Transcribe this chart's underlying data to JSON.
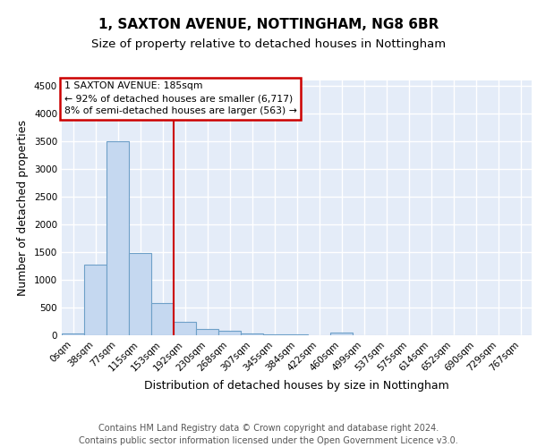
{
  "title": "1, SAXTON AVENUE, NOTTINGHAM, NG8 6BR",
  "subtitle": "Size of property relative to detached houses in Nottingham",
  "xlabel": "Distribution of detached houses by size in Nottingham",
  "ylabel": "Number of detached properties",
  "categories": [
    "0sqm",
    "38sqm",
    "77sqm",
    "115sqm",
    "153sqm",
    "192sqm",
    "230sqm",
    "268sqm",
    "307sqm",
    "345sqm",
    "384sqm",
    "422sqm",
    "460sqm",
    "499sqm",
    "537sqm",
    "575sqm",
    "614sqm",
    "652sqm",
    "690sqm",
    "729sqm",
    "767sqm"
  ],
  "values": [
    30,
    1280,
    3500,
    1480,
    580,
    240,
    120,
    80,
    40,
    20,
    10,
    5,
    50,
    0,
    0,
    0,
    0,
    0,
    0,
    0,
    0
  ],
  "bar_color": "#c5d8f0",
  "bar_edge_color": "#6ea0c8",
  "background_color": "#e4ecf8",
  "grid_color": "#ffffff",
  "property_line_x": 4.5,
  "annotation_line1": "1 SAXTON AVENUE: 185sqm",
  "annotation_line2": "← 92% of detached houses are smaller (6,717)",
  "annotation_line3": "8% of semi-detached houses are larger (563) →",
  "annotation_box_edgecolor": "#cc0000",
  "ylim": [
    0,
    4600
  ],
  "yticks": [
    0,
    500,
    1000,
    1500,
    2000,
    2500,
    3000,
    3500,
    4000,
    4500
  ],
  "title_fontsize": 11,
  "subtitle_fontsize": 9.5,
  "axis_label_fontsize": 9,
  "tick_fontsize": 7.5,
  "footer_fontsize": 7,
  "footer_text_line1": "Contains HM Land Registry data © Crown copyright and database right 2024.",
  "footer_text_line2": "Contains public sector information licensed under the Open Government Licence v3.0."
}
